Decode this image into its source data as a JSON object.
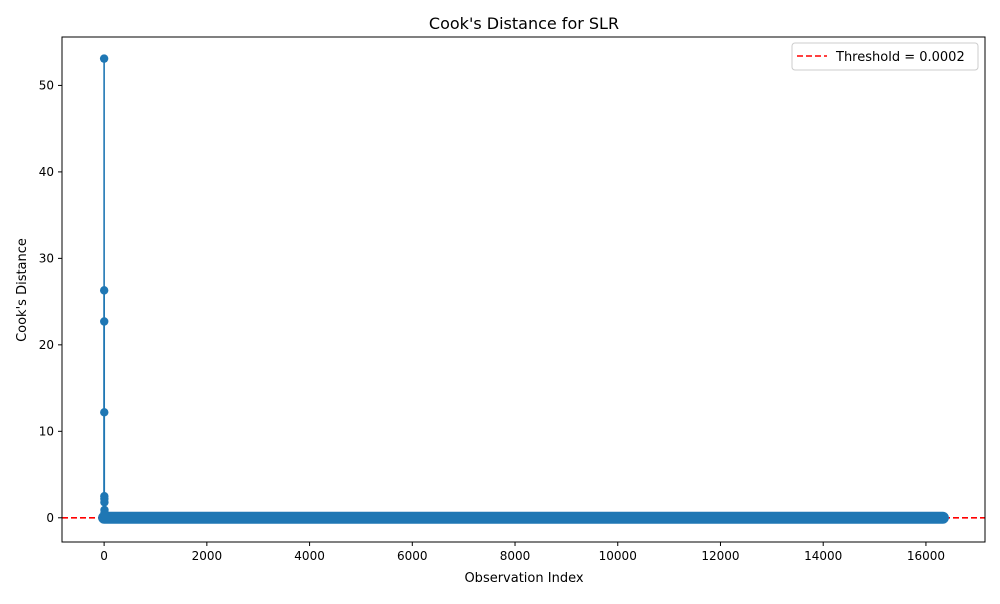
{
  "chart_data": {
    "type": "stem",
    "title": "Cook's Distance for SLR",
    "xlabel": "Observation Index",
    "ylabel": "Cook's Distance",
    "xlim": [
      -820,
      17150
    ],
    "ylim": [
      -2.8,
      55.6
    ],
    "xticks": [
      0,
      2000,
      4000,
      6000,
      8000,
      10000,
      12000,
      14000,
      16000
    ],
    "yticks": [
      0,
      10,
      20,
      30,
      40,
      50
    ],
    "grid": false,
    "legend": {
      "position": "top-right",
      "entries": [
        "Threshold = 0.0002"
      ]
    },
    "threshold": {
      "value": 0.0002,
      "label": "Threshold = 0.0002",
      "color": "#ff0000",
      "style": "dashed"
    },
    "series": [
      {
        "color": "#1f77b4",
        "baseline_x_range": [
          0,
          16330
        ],
        "points": [
          {
            "x": 0,
            "y": 53.1
          },
          {
            "x": 1,
            "y": 26.3
          },
          {
            "x": 2,
            "y": 22.7
          },
          {
            "x": 3,
            "y": 12.2
          },
          {
            "x": 4,
            "y": 2.5
          },
          {
            "x": 5,
            "y": 2.2
          },
          {
            "x": 6,
            "y": 1.8
          },
          {
            "x": 7,
            "y": 0.9
          },
          {
            "x": 8,
            "y": 0.6
          },
          {
            "x": 9,
            "y": 0.3
          }
        ]
      }
    ]
  }
}
